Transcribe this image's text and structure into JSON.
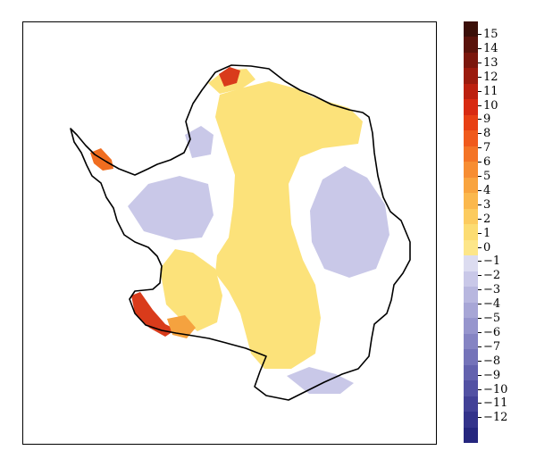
{
  "map": {
    "region": "Antarctica",
    "fill_colors": {
      "plateau_positive": "#fce27a",
      "negative_light": "#c9c8e8",
      "negative_mid": "#b4b3dd",
      "peninsula_hot": "#f06d1f",
      "coast_hot": "#d93b1b",
      "coastline": "#000000",
      "land_background": "#ffffff"
    }
  },
  "colorbar": {
    "ticks": [
      "15",
      "14",
      "13",
      "12",
      "11",
      "10",
      "9",
      "8",
      "7",
      "6",
      "5",
      "4",
      "3",
      "2",
      "1",
      "0",
      "−1",
      "−2",
      "−3",
      "−4",
      "−5",
      "−6",
      "−7",
      "−8",
      "−9",
      "−10",
      "−11",
      "−12"
    ],
    "colors": [
      "#3b0f08",
      "#5a130b",
      "#7b170d",
      "#9b1b0e",
      "#bc200f",
      "#d82a12",
      "#e84014",
      "#f05a1c",
      "#f47426",
      "#f78d32",
      "#f9a43f",
      "#fbb84d",
      "#fccb5f",
      "#fcdc72",
      "#fde689",
      "#dcdcf0",
      "#c9c8e8",
      "#b8b7df",
      "#a7a6d6",
      "#9695cd",
      "#8584c3",
      "#7473b9",
      "#6362ae",
      "#5251a3",
      "#424197",
      "#33338b",
      "#25267e"
    ]
  }
}
